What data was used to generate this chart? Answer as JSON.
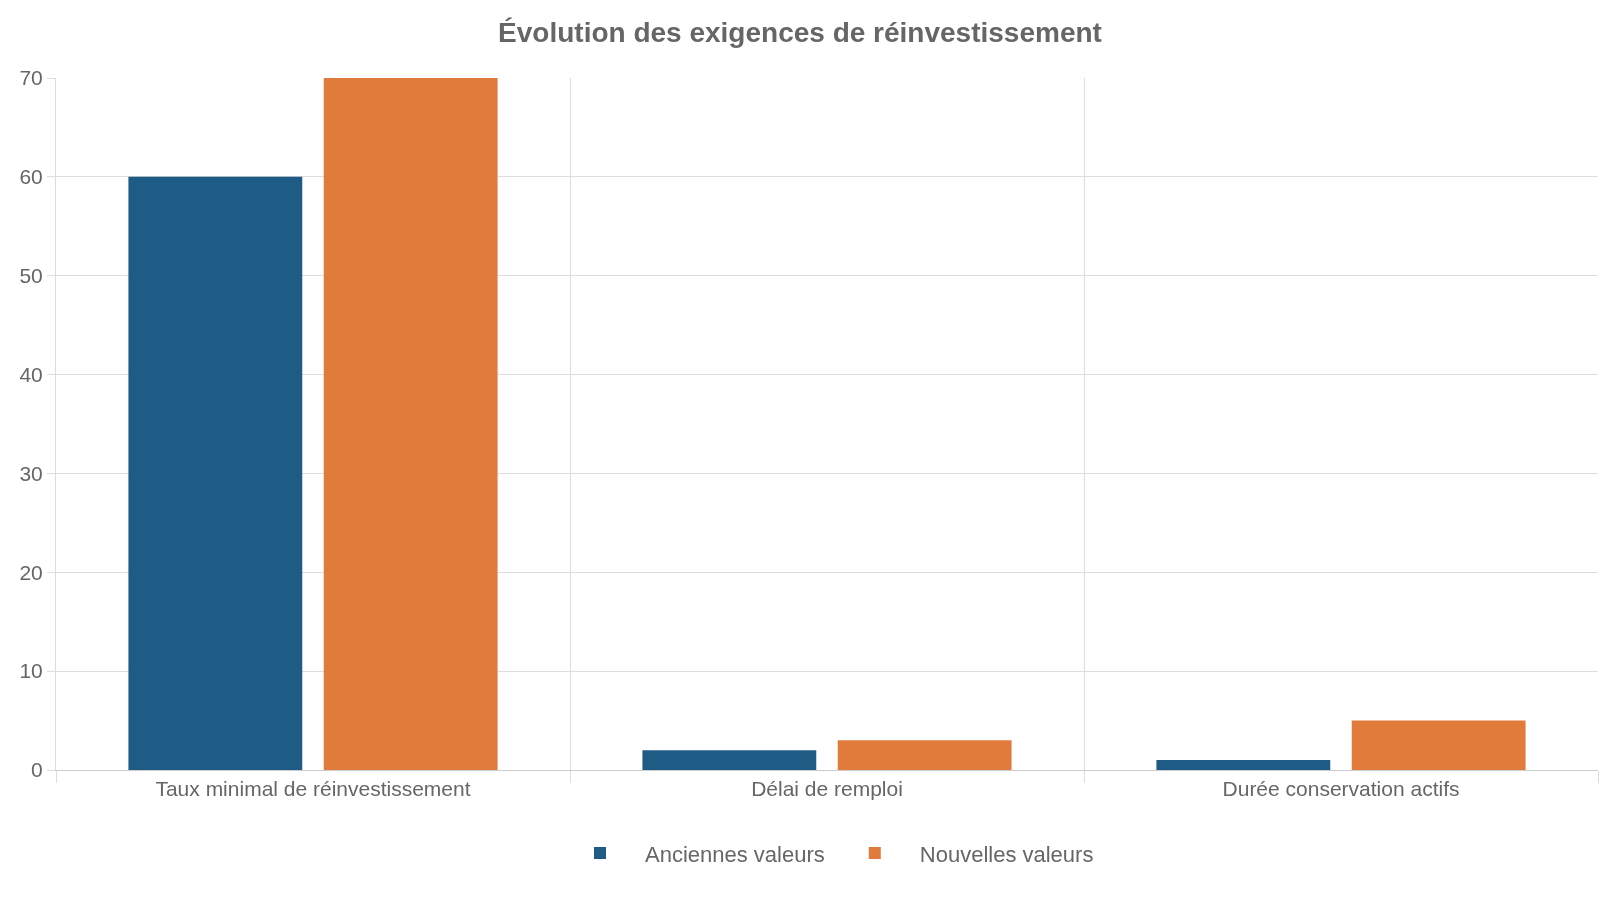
{
  "chart_data": {
    "type": "bar",
    "title": "Évolution des exigences de réinvestissement",
    "categories": [
      "Taux minimal de réinvestissement",
      "Délai de remploi",
      "Durée conservation actifs"
    ],
    "series": [
      {
        "name": "Anciennes valeurs",
        "color": "#1f5c85",
        "values": [
          60,
          2,
          1
        ]
      },
      {
        "name": "Nouvelles valeurs",
        "color": "#e07b3b",
        "values": [
          70,
          3,
          5
        ]
      }
    ],
    "ylim": [
      0,
      70
    ],
    "yticks": [
      0,
      10,
      20,
      30,
      40,
      50,
      60,
      70
    ],
    "grid": true,
    "legend": "bottom"
  }
}
